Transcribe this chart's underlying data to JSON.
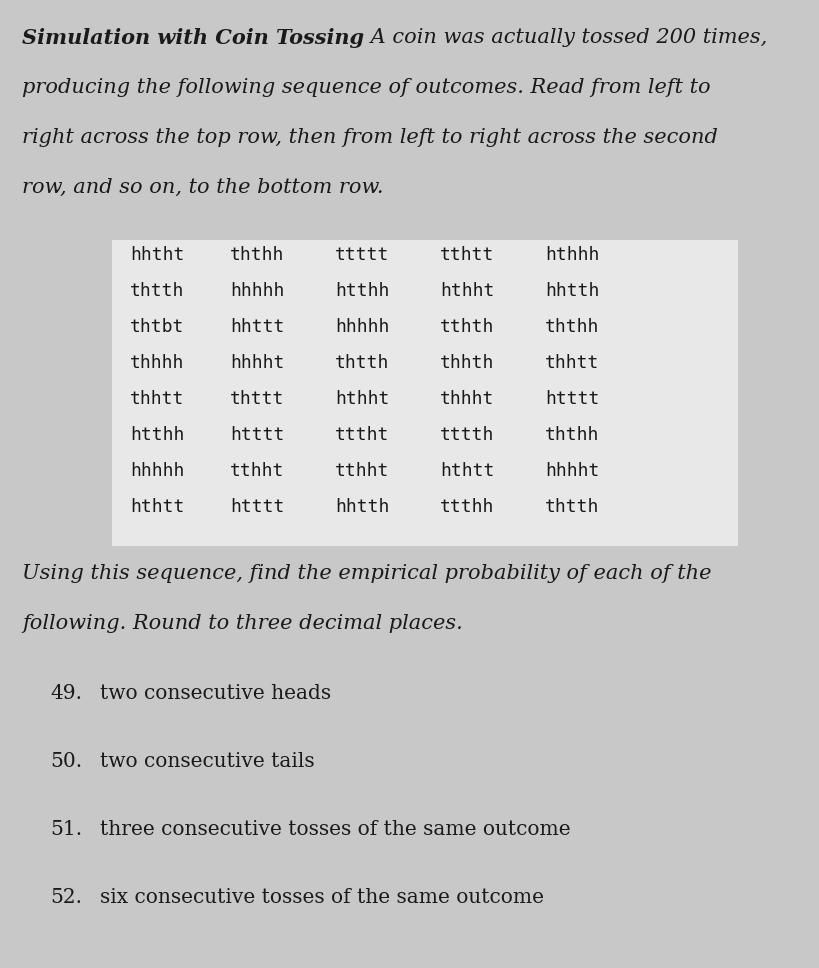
{
  "background_color": "#c8c8c8",
  "table_bg_color": "#e8e8e8",
  "title_bold_part": "Simulation with Coin Tossing",
  "title_normal_part": " A coin was actually tossed 200 times,",
  "intro_lines": [
    "producing the following sequence of outcomes. Read from left to",
    "right across the top row, then from left to right across the second",
    "row, and so on, to the bottom row."
  ],
  "coin_rows": [
    [
      "hhtht",
      "ththh",
      "ttttt",
      "tthtt",
      "hthhh"
    ],
    [
      "thtth",
      "hhhhh",
      "htthh",
      "hthht",
      "hhtth"
    ],
    [
      "thtbt",
      "hhttt",
      "hhhhh",
      "tthth",
      "ththh"
    ],
    [
      "thhhh",
      "hhhht",
      "thtth",
      "thhth",
      "thhtt"
    ],
    [
      "thhtt",
      "thttt",
      "hthht",
      "thhht",
      "htttt"
    ],
    [
      "htthh",
      "htttt",
      "tttht",
      "tttth",
      "ththh"
    ],
    [
      "hhhhh",
      "tthht",
      "tthht",
      "hthtt",
      "hhhht"
    ],
    [
      "hthtt",
      "htttt",
      "hhtth",
      "ttthh",
      "thtth"
    ]
  ],
  "middle_text_lines": [
    "Using this sequence, find the empirical probability of each of the",
    "following. Round to three decimal places."
  ],
  "questions": [
    {
      "num": "49.",
      "text": "two consecutive heads"
    },
    {
      "num": "50.",
      "text": "two consecutive tails"
    },
    {
      "num": "51.",
      "text": "three consecutive tosses of the same outcome"
    },
    {
      "num": "52.",
      "text": "six consecutive tosses of the same outcome"
    }
  ],
  "font_size_intro": 15.0,
  "font_size_table": 13.0,
  "font_size_middle": 15.0,
  "font_size_questions": 14.5,
  "text_color": "#1a1a1a"
}
